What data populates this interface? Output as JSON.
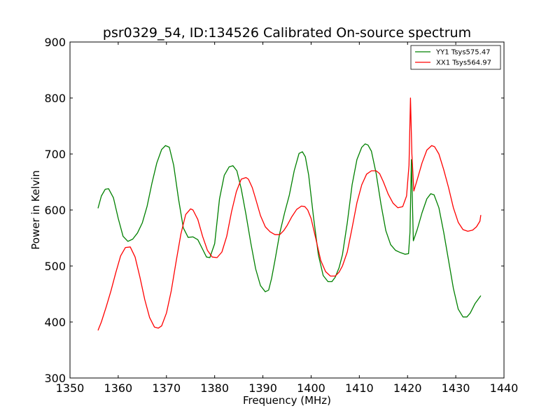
{
  "chart_data": {
    "type": "line",
    "title": "psr0329_54, ID:134526 Calibrated On-source spectrum",
    "xlabel": "Frequency (MHz)",
    "ylabel": "Power in Kelvin",
    "xlim": [
      1350,
      1440
    ],
    "ylim": [
      300,
      900
    ],
    "xticks": [
      1350,
      1360,
      1370,
      1380,
      1390,
      1400,
      1410,
      1420,
      1430,
      1440
    ],
    "yticks": [
      300,
      400,
      500,
      600,
      700,
      800,
      900
    ],
    "grid": false,
    "legend_position": "top-right",
    "series": [
      {
        "name": "YY1 Tsys575.47",
        "color": "#008000",
        "x": [
          1355.8,
          1356.5,
          1357.3,
          1358.0,
          1359.0,
          1360.0,
          1361.0,
          1362.0,
          1363.0,
          1364.0,
          1365.0,
          1366.0,
          1367.0,
          1368.0,
          1369.0,
          1369.8,
          1370.6,
          1371.5,
          1372.5,
          1373.5,
          1374.5,
          1375.5,
          1376.5,
          1377.5,
          1378.3,
          1379.0,
          1380.0,
          1381.0,
          1382.0,
          1383.0,
          1383.8,
          1384.6,
          1385.5,
          1386.5,
          1387.5,
          1388.5,
          1389.5,
          1390.5,
          1391.2,
          1391.8,
          1392.5,
          1393.5,
          1394.5,
          1395.5,
          1396.5,
          1397.5,
          1398.2,
          1398.8,
          1399.5,
          1400.5,
          1401.5,
          1402.5,
          1403.5,
          1404.3,
          1405.0,
          1405.8,
          1406.5,
          1407.5,
          1408.5,
          1409.5,
          1410.5,
          1411.2,
          1411.8,
          1412.5,
          1413.5,
          1414.5,
          1415.5,
          1416.5,
          1417.5,
          1418.5,
          1419.5,
          1420.2,
          1420.5,
          1420.8,
          1421.2,
          1422.0,
          1423.0,
          1424.0,
          1424.8,
          1425.5,
          1426.5,
          1427.5,
          1428.5,
          1429.5,
          1430.5,
          1431.5,
          1432.3,
          1433.0,
          1434.0,
          1435.2
        ],
        "y": [
          603,
          625,
          637,
          638,
          622,
          585,
          553,
          544,
          548,
          559,
          577,
          607,
          648,
          684,
          708,
          715,
          712,
          680,
          620,
          568,
          551,
          552,
          547,
          530,
          516,
          515,
          540,
          620,
          662,
          677,
          679,
          670,
          638,
          592,
          541,
          495,
          465,
          454,
          457,
          478,
          510,
          559,
          595,
          627,
          670,
          701,
          704,
          695,
          662,
          587,
          520,
          483,
          472,
          472,
          480,
          497,
          520,
          577,
          645,
          690,
          712,
          718,
          716,
          705,
          665,
          610,
          563,
          538,
          528,
          524,
          521,
          522,
          560,
          690,
          545,
          565,
          595,
          620,
          629,
          627,
          604,
          560,
          510,
          460,
          423,
          409,
          409,
          416,
          433,
          447
        ]
      },
      {
        "name": "XX1 Tsys564.97",
        "color": "#ff0000",
        "x": [
          1355.8,
          1356.5,
          1357.5,
          1358.5,
          1359.5,
          1360.5,
          1361.5,
          1362.5,
          1363.5,
          1364.5,
          1365.5,
          1366.5,
          1367.5,
          1368.3,
          1369.0,
          1370.0,
          1371.0,
          1372.0,
          1373.0,
          1374.0,
          1375.0,
          1375.5,
          1376.5,
          1377.5,
          1378.5,
          1379.5,
          1380.5,
          1381.5,
          1382.5,
          1383.5,
          1384.5,
          1385.5,
          1386.5,
          1387.0,
          1387.8,
          1388.5,
          1389.5,
          1390.5,
          1391.5,
          1392.5,
          1393.5,
          1394.3,
          1395.0,
          1396.0,
          1397.0,
          1398.0,
          1398.7,
          1399.3,
          1400.0,
          1401.0,
          1402.0,
          1403.0,
          1404.0,
          1405.0,
          1405.8,
          1406.5,
          1407.5,
          1408.5,
          1409.5,
          1410.5,
          1411.5,
          1412.5,
          1413.5,
          1414.2,
          1415.0,
          1416.0,
          1417.0,
          1418.0,
          1419.0,
          1419.8,
          1420.3,
          1420.6,
          1420.9,
          1421.3,
          1422.0,
          1423.0,
          1424.0,
          1425.0,
          1425.6,
          1426.5,
          1427.5,
          1428.5,
          1429.5,
          1430.5,
          1431.5,
          1432.5,
          1433.5,
          1434.3,
          1435.0,
          1435.2
        ],
        "y": [
          385,
          400,
          427,
          456,
          488,
          518,
          533,
          534,
          516,
          480,
          440,
          408,
          391,
          389,
          393,
          416,
          456,
          508,
          557,
          592,
          602,
          600,
          583,
          553,
          528,
          516,
          515,
          525,
          553,
          597,
          633,
          655,
          658,
          655,
          640,
          620,
          590,
          570,
          561,
          556,
          556,
          563,
          572,
          588,
          601,
          607,
          606,
          600,
          585,
          548,
          510,
          490,
          482,
          482,
          489,
          500,
          525,
          568,
          613,
          645,
          664,
          670,
          670,
          665,
          650,
          628,
          612,
          604,
          606,
          625,
          680,
          800,
          700,
          634,
          654,
          684,
          707,
          715,
          713,
          700,
          672,
          640,
          604,
          578,
          565,
          562,
          564,
          570,
          580,
          591
        ]
      }
    ]
  }
}
